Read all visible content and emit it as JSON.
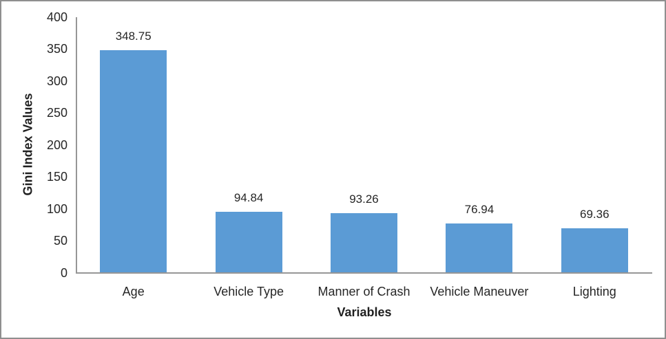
{
  "chart_data": {
    "type": "bar",
    "title": "",
    "categories": [
      "Age",
      "Vehicle Type",
      "Manner of Crash",
      "Vehicle Maneuver",
      "Lighting"
    ],
    "values": [
      348.75,
      94.84,
      93.26,
      76.94,
      69.36
    ],
    "data_labels": [
      "348.75",
      "94.84",
      "93.26",
      "76.94",
      "69.36"
    ],
    "xlabel": "Variables",
    "ylabel": "Gini Index Values",
    "ylim": [
      0,
      400
    ],
    "yticks": [
      0,
      50,
      100,
      150,
      200,
      250,
      300,
      350,
      400
    ],
    "bar_color": "#5B9BD5",
    "axis_line_color": "#969696",
    "grid": false,
    "legend_position": "none"
  }
}
